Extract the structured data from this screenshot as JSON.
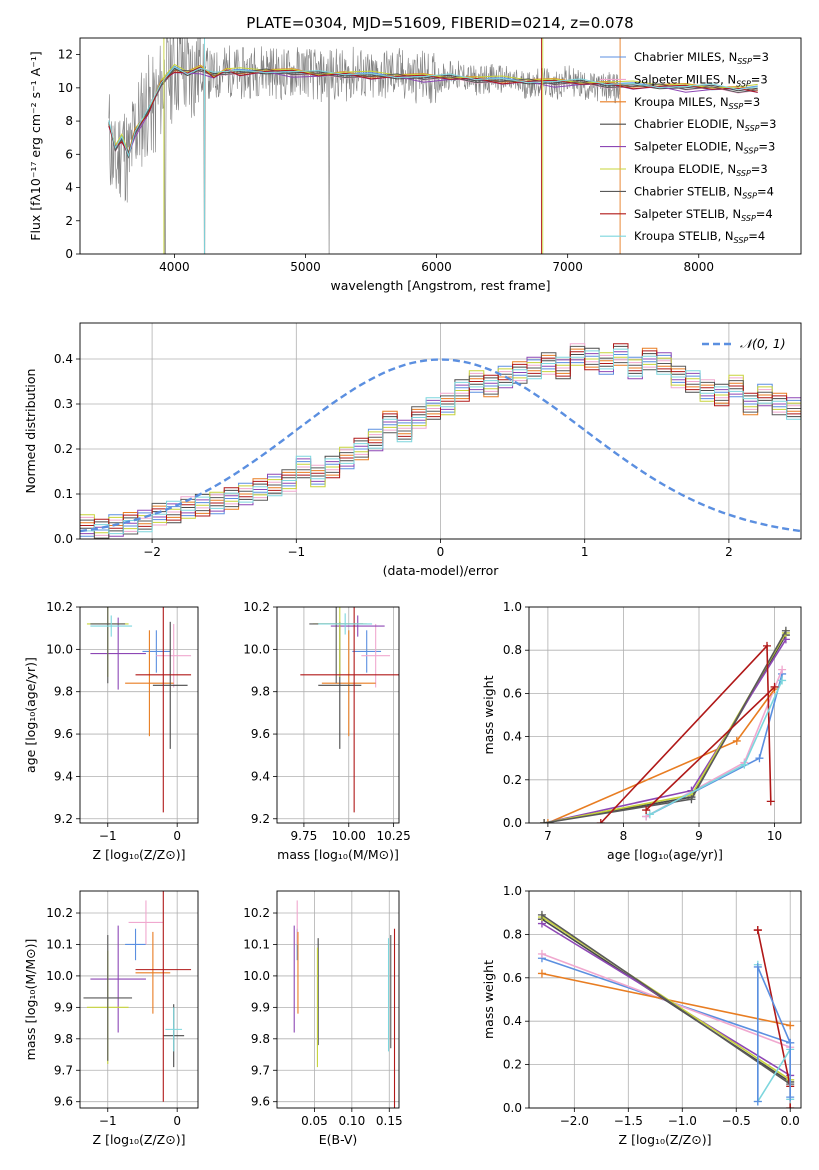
{
  "figure": {
    "title": "PLATE=0304, MJD=51609, FIBERID=0214, z=0.078"
  },
  "chart_data": [
    {
      "id": "spectrum",
      "type": "line",
      "xlabel": "wavelength [Angstrom, rest frame]",
      "ylabel": "Flux [fλ10⁻¹⁷ erg cm⁻² s⁻¹ A⁻¹]",
      "xlim": [
        3280,
        8780
      ],
      "ylim": [
        0,
        13
      ],
      "xticks": [
        4000,
        5000,
        6000,
        7000,
        8000
      ],
      "yticks": [
        0,
        2,
        4,
        6,
        8,
        10,
        12
      ],
      "grid": false,
      "legend_position": "top-right",
      "data_color": "#7f7f7f",
      "data_x": [
        3500,
        3550,
        3600,
        3650,
        3700,
        3750,
        3800,
        3850,
        3900,
        3950,
        4000,
        4050,
        4100,
        4150,
        4200,
        4250,
        4300,
        4350,
        4400,
        4500,
        4600,
        4700,
        4800,
        4900,
        5000,
        5100,
        5200,
        5300,
        5400,
        5500,
        5600,
        5700,
        5800,
        5900,
        6000,
        6100,
        6200,
        6300,
        6400,
        6500,
        6600,
        6700,
        6800,
        6900,
        7000,
        7100,
        7200,
        7300,
        7400
      ],
      "data_y": [
        7.2,
        5.0,
        6.8,
        5.5,
        7.5,
        8.2,
        9.0,
        8.6,
        10.0,
        10.6,
        11.2,
        11.5,
        10.7,
        11.0,
        11.3,
        10.9,
        10.6,
        10.9,
        11.1,
        10.8,
        11.0,
        11.2,
        10.8,
        10.9,
        11.1,
        10.6,
        10.9,
        10.7,
        11.0,
        10.5,
        10.8,
        10.9,
        10.6,
        10.7,
        10.5,
        10.8,
        10.7,
        10.4,
        10.6,
        10.5,
        10.3,
        10.2,
        10.4,
        10.1,
        10.5,
        10.2,
        10.0,
        10.1,
        9.9
      ],
      "model_x": [
        3500,
        3550,
        3600,
        3650,
        3700,
        3800,
        3900,
        4000,
        4100,
        4200,
        4300,
        4400,
        4500,
        4700,
        4900,
        5100,
        5300,
        5500,
        5700,
        5900,
        6100,
        6300,
        6500,
        6700,
        6900,
        7100,
        7300,
        7500,
        7700,
        7900,
        8100,
        8300,
        8450
      ],
      "model_y": [
        7.8,
        6.4,
        6.9,
        6.0,
        7.3,
        8.5,
        10.3,
        11.1,
        10.9,
        11.1,
        10.7,
        11.0,
        10.9,
        11.0,
        10.9,
        10.8,
        10.8,
        10.7,
        10.7,
        10.6,
        10.6,
        10.5,
        10.4,
        10.4,
        10.3,
        10.3,
        10.2,
        10.1,
        10.1,
        10.0,
        10.0,
        9.9,
        9.9
      ],
      "series": [
        {
          "name": "Chabrier MILES, N",
          "sub": "SSP",
          "suffix": "=3",
          "color": "#5b8fe0",
          "offset": 0.05
        },
        {
          "name": "Salpeter MILES, N",
          "sub": "SSP",
          "suffix": "=3",
          "color": "#f0a8cf",
          "offset": -0.05
        },
        {
          "name": "Kroupa MILES, N",
          "sub": "SSP",
          "suffix": "=3",
          "color": "#e87d22",
          "offset": 0.1
        },
        {
          "name": "Chabrier ELODIE, N",
          "sub": "SSP",
          "suffix": "=3",
          "color": "#4a4a4a",
          "offset": 0.0
        },
        {
          "name": "Salpeter ELODIE, N",
          "sub": "SSP",
          "suffix": "=3",
          "color": "#8d47b5",
          "offset": -0.1
        },
        {
          "name": "Kroupa ELODIE, N",
          "sub": "SSP",
          "suffix": "=3",
          "color": "#c7d43a",
          "offset": 0.15
        },
        {
          "name": "Chabrier STELIB, N",
          "sub": "SSP",
          "suffix": "=4",
          "color": "#595959",
          "offset": -0.02
        },
        {
          "name": "Salpeter STELIB, N",
          "sub": "SSP",
          "suffix": "=4",
          "color": "#b01818",
          "offset": 0.0
        },
        {
          "name": "Kroupa STELIB, N",
          "sub": "SSP",
          "suffix": "=4",
          "color": "#7dd6dd",
          "offset": 0.08
        }
      ]
    },
    {
      "id": "residuals",
      "type": "histogram",
      "xlabel": "(data-model)/error",
      "ylabel": "Normed distribution",
      "xlim": [
        -2.5,
        2.5
      ],
      "ylim": [
        0,
        0.48
      ],
      "xticks": [
        -2,
        -1,
        0,
        1,
        2
      ],
      "xtick_labels": [
        "−2",
        "−1",
        "0",
        "1",
        "2"
      ],
      "yticks": [
        0.0,
        0.1,
        0.2,
        0.3,
        0.4
      ],
      "ytick_labels": [
        "0.0",
        "0.1",
        "0.2",
        "0.3",
        "0.4"
      ],
      "grid": true,
      "legend_position": "top-right",
      "curve_label": "𝒩(0, 1)",
      "curve_color": "#5b8fe0",
      "bin_width": 0.1,
      "bin_start": -2.5,
      "base_values": [
        0.03,
        0.02,
        0.03,
        0.035,
        0.04,
        0.055,
        0.06,
        0.07,
        0.075,
        0.08,
        0.09,
        0.1,
        0.11,
        0.12,
        0.13,
        0.16,
        0.14,
        0.16,
        0.18,
        0.2,
        0.22,
        0.26,
        0.24,
        0.27,
        0.29,
        0.3,
        0.33,
        0.35,
        0.34,
        0.36,
        0.37,
        0.38,
        0.39,
        0.38,
        0.41,
        0.4,
        0.39,
        0.41,
        0.38,
        0.4,
        0.39,
        0.36,
        0.35,
        0.33,
        0.32,
        0.34,
        0.3,
        0.32,
        0.3,
        0.29,
        0.27,
        0.25,
        0.24,
        0.22,
        0.2,
        0.18,
        0.17,
        0.15,
        0.13,
        0.12,
        0.11,
        0.1,
        0.09,
        0.08,
        0.07,
        0.065,
        0.06,
        0.05,
        0.045,
        0.04,
        0.035,
        0.03,
        0.03,
        0.025,
        0.03,
        0.03,
        0.025,
        0.02,
        0.03,
        0.035
      ],
      "series_colors": [
        "#5b8fe0",
        "#f0a8cf",
        "#e87d22",
        "#4a4a4a",
        "#8d47b5",
        "#c7d43a",
        "#595959",
        "#b01818",
        "#7dd6dd"
      ]
    },
    {
      "id": "z-age",
      "type": "errorbar",
      "xlabel": "Z [log₁₀(Z/Z⊙)]",
      "ylabel": "age  [log₁₀(age/yr)]",
      "xlim": [
        -1.4,
        0.3
      ],
      "ylim": [
        9.18,
        10.2
      ],
      "xticks": [
        -1,
        0
      ],
      "xtick_labels": [
        "−1",
        "0"
      ],
      "yticks": [
        9.2,
        9.4,
        9.6,
        9.8,
        10.0,
        10.2
      ],
      "ytick_labels": [
        "9.2",
        "9.4",
        "9.6",
        "9.8",
        "10.0",
        "10.2"
      ],
      "grid": true,
      "points": [
        {
          "x": -0.3,
          "y": 9.99,
          "xerr": 0.2,
          "yerr": 0.1,
          "color": "#5b8fe0"
        },
        {
          "x": -0.05,
          "y": 9.97,
          "xerr": 0.25,
          "yerr": 0.15,
          "color": "#f0a8cf"
        },
        {
          "x": -0.4,
          "y": 9.84,
          "xerr": 0.35,
          "yerr": 0.25,
          "color": "#e87d22"
        },
        {
          "x": -0.1,
          "y": 9.83,
          "xerr": 0.25,
          "yerr": 0.3,
          "color": "#4a4a4a"
        },
        {
          "x": -0.85,
          "y": 9.98,
          "xerr": 0.4,
          "yerr": 0.17,
          "color": "#8d47b5"
        },
        {
          "x": -1.0,
          "y": 10.12,
          "xerr": 0.3,
          "yerr": 0.25,
          "color": "#c7d43a"
        },
        {
          "x": -1.0,
          "y": 10.12,
          "xerr": 0.25,
          "yerr": 0.28,
          "color": "#595959"
        },
        {
          "x": -0.2,
          "y": 9.88,
          "xerr": 0.4,
          "yerr": 0.65,
          "color": "#b01818"
        },
        {
          "x": -0.95,
          "y": 10.11,
          "xerr": 0.3,
          "yerr": 0.05,
          "color": "#7dd6dd"
        }
      ]
    },
    {
      "id": "mass-age",
      "type": "errorbar",
      "xlabel": "mass [log₁₀(M/M⊙)]",
      "ylabel": "",
      "xlim": [
        9.6,
        10.28
      ],
      "ylim": [
        9.18,
        10.2
      ],
      "xticks": [
        9.75,
        10.0,
        10.25
      ],
      "xtick_labels": [
        "9.75",
        "10.00",
        "10.25"
      ],
      "yticks": [
        9.2,
        9.4,
        9.6,
        9.8,
        10.0,
        10.2
      ],
      "ytick_labels": [
        "9.2",
        "9.4",
        "9.6",
        "9.8",
        "10.0",
        "10.2"
      ],
      "grid": true,
      "points": [
        {
          "x": 10.1,
          "y": 9.99,
          "xerr": 0.08,
          "yerr": 0.1,
          "color": "#5b8fe0"
        },
        {
          "x": 10.15,
          "y": 9.97,
          "xerr": 0.08,
          "yerr": 0.15,
          "color": "#f0a8cf"
        },
        {
          "x": 10.0,
          "y": 9.84,
          "xerr": 0.15,
          "yerr": 0.25,
          "color": "#e87d22"
        },
        {
          "x": 9.95,
          "y": 9.83,
          "xerr": 0.12,
          "yerr": 0.3,
          "color": "#4a4a4a"
        },
        {
          "x": 10.05,
          "y": 10.11,
          "xerr": 0.15,
          "yerr": 0.05,
          "color": "#8d47b5"
        },
        {
          "x": 9.95,
          "y": 10.12,
          "xerr": 0.15,
          "yerr": 0.25,
          "color": "#c7d43a"
        },
        {
          "x": 9.93,
          "y": 10.12,
          "xerr": 0.15,
          "yerr": 0.28,
          "color": "#595959"
        },
        {
          "x": 10.03,
          "y": 9.88,
          "xerr": 0.3,
          "yerr": 0.65,
          "color": "#b01818"
        },
        {
          "x": 9.98,
          "y": 10.12,
          "xerr": 0.15,
          "yerr": 0.05,
          "color": "#7dd6dd"
        }
      ]
    },
    {
      "id": "age-weight",
      "type": "line",
      "xlabel": "age  [log₁₀(age/yr)]",
      "ylabel": "mass weight",
      "xlim": [
        6.75,
        10.35
      ],
      "ylim": [
        0,
        1
      ],
      "xticks": [
        7,
        8,
        9,
        10
      ],
      "xtick_labels": [
        "7",
        "8",
        "9",
        "10"
      ],
      "yticks": [
        0,
        0.2,
        0.4,
        0.6,
        0.8,
        1.0
      ],
      "ytick_labels": [
        "0.0",
        "0.2",
        "0.4",
        "0.6",
        "0.8",
        "1.0"
      ],
      "grid": true,
      "series": [
        {
          "color": "#5b8fe0",
          "x": [
            8.3,
            9.8,
            10.1
          ],
          "y": [
            0.03,
            0.3,
            0.69
          ]
        },
        {
          "color": "#f0a8cf",
          "x": [
            8.3,
            9.6,
            10.1
          ],
          "y": [
            0.03,
            0.28,
            0.71
          ]
        },
        {
          "color": "#e87d22",
          "x": [
            7.0,
            9.5,
            10.0
          ],
          "y": [
            0.0,
            0.38,
            0.62
          ]
        },
        {
          "color": "#4a4a4a",
          "x": [
            6.95,
            8.9,
            10.15
          ],
          "y": [
            0.0,
            0.12,
            0.87
          ]
        },
        {
          "color": "#8d47b5",
          "x": [
            6.95,
            8.9,
            10.15
          ],
          "y": [
            0.0,
            0.15,
            0.85
          ]
        },
        {
          "color": "#c7d43a",
          "x": [
            6.95,
            8.9,
            10.15
          ],
          "y": [
            0.0,
            0.13,
            0.88
          ]
        },
        {
          "color": "#595959",
          "x": [
            6.95,
            8.9,
            10.15
          ],
          "y": [
            0.0,
            0.11,
            0.89
          ]
        },
        {
          "color": "#b01818",
          "x": [
            7.7,
            9.9,
            9.95
          ],
          "y": [
            0.0,
            0.82,
            0.1
          ]
        },
        {
          "color": "#7dd6dd",
          "x": [
            8.35,
            9.6,
            10.1
          ],
          "y": [
            0.04,
            0.27,
            0.66
          ]
        },
        {
          "color": "#b01818",
          "x": [
            8.3,
            10.0
          ],
          "y": [
            0.06,
            0.63
          ]
        }
      ]
    },
    {
      "id": "z-mass",
      "type": "errorbar",
      "xlabel": "Z [log₁₀(Z/Z⊙)]",
      "ylabel": "mass [log₁₀(M/M⊙)]",
      "xlim": [
        -1.4,
        0.3
      ],
      "ylim": [
        9.58,
        10.27
      ],
      "xticks": [
        -1,
        0
      ],
      "xtick_labels": [
        "−1",
        "0"
      ],
      "yticks": [
        9.6,
        9.7,
        9.8,
        9.9,
        10.0,
        10.1,
        10.2
      ],
      "ytick_labels": [
        "9.6",
        "9.7",
        "9.8",
        "9.9",
        "10.0",
        "10.1",
        "10.2"
      ],
      "grid": true,
      "points": [
        {
          "x": -0.6,
          "y": 10.1,
          "xerr": 0.15,
          "yerr": 0.05,
          "color": "#5b8fe0"
        },
        {
          "x": -0.45,
          "y": 10.17,
          "xerr": 0.25,
          "yerr": 0.07,
          "color": "#f0a8cf"
        },
        {
          "x": -0.35,
          "y": 10.01,
          "xerr": 0.25,
          "yerr": 0.13,
          "color": "#e87d22"
        },
        {
          "x": -0.05,
          "y": 9.81,
          "xerr": 0.15,
          "yerr": 0.1,
          "color": "#4a4a4a"
        },
        {
          "x": -0.85,
          "y": 9.99,
          "xerr": 0.4,
          "yerr": 0.17,
          "color": "#8d47b5"
        },
        {
          "x": -1.0,
          "y": 9.9,
          "xerr": 0.3,
          "yerr": 0.18,
          "color": "#c7d43a"
        },
        {
          "x": -1.0,
          "y": 9.93,
          "xerr": 0.35,
          "yerr": 0.2,
          "color": "#595959"
        },
        {
          "x": -0.2,
          "y": 10.02,
          "xerr": 0.4,
          "yerr": 0.42,
          "color": "#b01818"
        },
        {
          "x": -0.05,
          "y": 9.83,
          "xerr": 0.12,
          "yerr": 0.07,
          "color": "#7dd6dd"
        }
      ]
    },
    {
      "id": "ebv-mass",
      "type": "errorbar",
      "xlabel": "E(B-V)",
      "ylabel": "",
      "xlim": [
        0.0,
        0.163
      ],
      "ylim": [
        9.58,
        10.27
      ],
      "xticks": [
        0.05,
        0.1,
        0.15
      ],
      "xtick_labels": [
        "0.05",
        "0.10",
        "0.15"
      ],
      "yticks": [
        9.6,
        9.7,
        9.8,
        9.9,
        10.0,
        10.1,
        10.2
      ],
      "ytick_labels": [
        "9.6",
        "9.7",
        "9.8",
        "9.9",
        "10.0",
        "10.1",
        "10.2"
      ],
      "grid": true,
      "points": [
        {
          "x": 0.027,
          "y": 10.1,
          "xerr": 0.0,
          "yerr": 0.05,
          "color": "#5b8fe0"
        },
        {
          "x": 0.027,
          "y": 10.17,
          "xerr": 0.0,
          "yerr": 0.07,
          "color": "#f0a8cf"
        },
        {
          "x": 0.028,
          "y": 10.01,
          "xerr": 0.0,
          "yerr": 0.13,
          "color": "#e87d22"
        },
        {
          "x": 0.055,
          "y": 9.95,
          "xerr": 0.0,
          "yerr": 0.17,
          "color": "#4a4a4a"
        },
        {
          "x": 0.023,
          "y": 9.99,
          "xerr": 0.0,
          "yerr": 0.17,
          "color": "#8d47b5"
        },
        {
          "x": 0.054,
          "y": 9.9,
          "xerr": 0.0,
          "yerr": 0.19,
          "color": "#c7d43a"
        },
        {
          "x": 0.152,
          "y": 9.95,
          "xerr": 0.0,
          "yerr": 0.18,
          "color": "#595959"
        },
        {
          "x": 0.157,
          "y": 9.85,
          "xerr": 0.0,
          "yerr": 0.3,
          "color": "#b01818"
        },
        {
          "x": 0.149,
          "y": 9.94,
          "xerr": 0.0,
          "yerr": 0.18,
          "color": "#7dd6dd"
        }
      ]
    },
    {
      "id": "z-weight",
      "type": "line",
      "xlabel": "Z [log₁₀(Z/Z⊙)]",
      "ylabel": "mass weight",
      "xlim": [
        -2.42,
        0.1
      ],
      "ylim": [
        0,
        1
      ],
      "xticks": [
        -2.0,
        -1.5,
        -1.0,
        -0.5,
        0.0
      ],
      "xtick_labels": [
        "−2.0",
        "−1.5",
        "−1.0",
        "−0.5",
        "0.0"
      ],
      "yticks": [
        0,
        0.2,
        0.4,
        0.6,
        0.8,
        1.0
      ],
      "ytick_labels": [
        "0.0",
        "0.2",
        "0.4",
        "0.6",
        "0.8",
        "1.0"
      ],
      "grid": true,
      "series": [
        {
          "color": "#5b8fe0",
          "x": [
            -2.3,
            0.0
          ],
          "y": [
            0.69,
            0.3
          ]
        },
        {
          "color": "#f0a8cf",
          "x": [
            -2.3,
            0.0
          ],
          "y": [
            0.71,
            0.28
          ]
        },
        {
          "color": "#e87d22",
          "x": [
            -2.3,
            0.0
          ],
          "y": [
            0.62,
            0.38
          ]
        },
        {
          "color": "#4a4a4a",
          "x": [
            -2.3,
            0.0
          ],
          "y": [
            0.87,
            0.12
          ]
        },
        {
          "color": "#8d47b5",
          "x": [
            -2.3,
            0.0
          ],
          "y": [
            0.85,
            0.15
          ]
        },
        {
          "color": "#c7d43a",
          "x": [
            -2.3,
            0.0
          ],
          "y": [
            0.88,
            0.13
          ]
        },
        {
          "color": "#595959",
          "x": [
            -2.3,
            0.0
          ],
          "y": [
            0.89,
            0.11
          ]
        },
        {
          "color": "#b01818",
          "x": [
            -0.3,
            -0.3,
            0.0,
            0.0
          ],
          "y": [
            0.82,
            0.82,
            0.1,
            0.0
          ]
        },
        {
          "color": "#7dd6dd",
          "x": [
            -0.3,
            -0.3,
            0.0,
            0.0
          ],
          "y": [
            0.66,
            0.03,
            0.27,
            0.04
          ]
        },
        {
          "color": "#5b8fe0",
          "x": [
            -0.3,
            -0.3,
            0.0,
            0.0
          ],
          "y": [
            0.03,
            0.65,
            0.3,
            0.05
          ]
        }
      ]
    }
  ]
}
